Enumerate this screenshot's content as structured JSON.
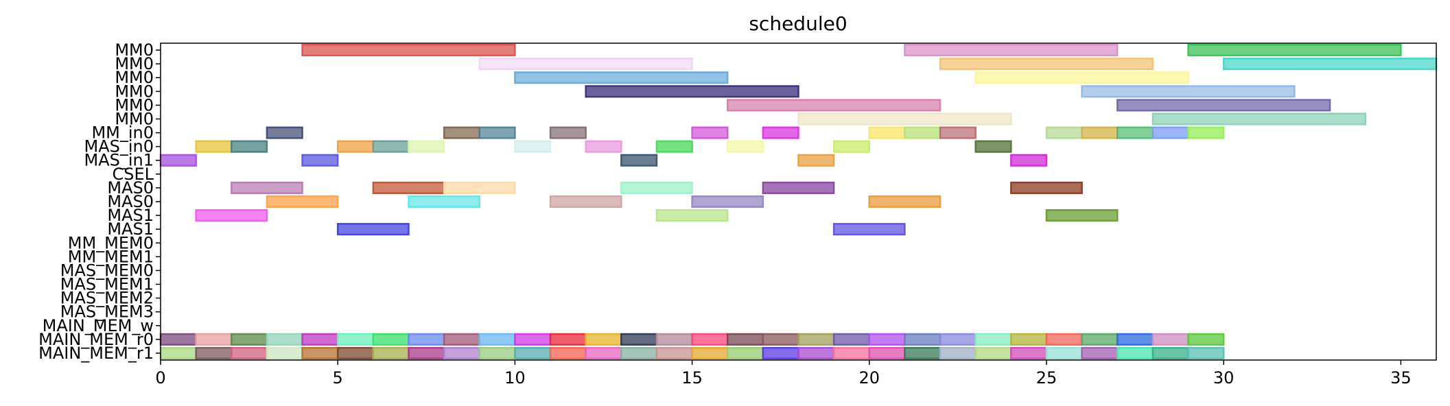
{
  "chart_data": {
    "type": "gantt",
    "title": "schedule0",
    "xlim": [
      0,
      36
    ],
    "xticks": [
      0,
      5,
      10,
      15,
      20,
      25,
      30,
      35
    ],
    "grid": false,
    "rows": [
      "MM0",
      "MM0",
      "MM0",
      "MM0",
      "MM0",
      "MM0",
      "MM_in0",
      "MAS_in0",
      "MAS_in1",
      "CSEL",
      "MAS0",
      "MAS0",
      "MAS1",
      "MAS1",
      "MM_MEM0",
      "MM_MEM1",
      "MAS_MEM0",
      "MAS_MEM1",
      "MAS_MEM2",
      "MAS_MEM3",
      "MAIN_MEM_w",
      "MAIN_MEM_r0",
      "MAIN_MEM_r1"
    ],
    "bars": [
      {
        "row": 0,
        "start": 4,
        "end": 10,
        "color": "#d9534f",
        "alpha": 0.75
      },
      {
        "row": 0,
        "start": 21,
        "end": 27,
        "color": "#d98cc7",
        "alpha": 0.7
      },
      {
        "row": 0,
        "start": 29,
        "end": 35,
        "color": "#3cc05a",
        "alpha": 0.75
      },
      {
        "row": 1,
        "start": 9,
        "end": 15,
        "color": "#e8c6ee",
        "alpha": 0.45
      },
      {
        "row": 1,
        "start": 22,
        "end": 28,
        "color": "#f4bf6e",
        "alpha": 0.7
      },
      {
        "row": 1,
        "start": 30,
        "end": 36,
        "color": "#40d4c8",
        "alpha": 0.7
      },
      {
        "row": 2,
        "start": 10,
        "end": 16,
        "color": "#64a8d8",
        "alpha": 0.7
      },
      {
        "row": 2,
        "start": 23,
        "end": 29,
        "color": "#fcf59a",
        "alpha": 0.75
      },
      {
        "row": 3,
        "start": 12,
        "end": 18,
        "color": "#3a2f7a",
        "alpha": 0.75
      },
      {
        "row": 3,
        "start": 26,
        "end": 32,
        "color": "#8ab2e0",
        "alpha": 0.65
      },
      {
        "row": 4,
        "start": 16,
        "end": 22,
        "color": "#d67aa8",
        "alpha": 0.7
      },
      {
        "row": 4,
        "start": 27,
        "end": 33,
        "color": "#6d5fa8",
        "alpha": 0.7
      },
      {
        "row": 5,
        "start": 18,
        "end": 24,
        "color": "#efe4c6",
        "alpha": 0.7
      },
      {
        "row": 5,
        "start": 28,
        "end": 34,
        "color": "#86ceb4",
        "alpha": 0.7
      },
      {
        "row": 6,
        "start": 3,
        "end": 4,
        "color": "#3b4670",
        "alpha": 0.7
      },
      {
        "row": 6,
        "start": 8,
        "end": 9,
        "color": "#7a6248",
        "alpha": 0.7
      },
      {
        "row": 6,
        "start": 9,
        "end": 10,
        "color": "#4a7f8e",
        "alpha": 0.7
      },
      {
        "row": 6,
        "start": 11,
        "end": 12,
        "color": "#7f6a6e",
        "alpha": 0.7
      },
      {
        "row": 6,
        "start": 15,
        "end": 16,
        "color": "#d24fd8",
        "alpha": 0.7
      },
      {
        "row": 6,
        "start": 17,
        "end": 18,
        "color": "#d936e0",
        "alpha": 0.75
      },
      {
        "row": 6,
        "start": 20,
        "end": 21,
        "color": "#f8e66a",
        "alpha": 0.75
      },
      {
        "row": 6,
        "start": 21,
        "end": 22,
        "color": "#b8e27a",
        "alpha": 0.75
      },
      {
        "row": 6,
        "start": 22,
        "end": 23,
        "color": "#b86a72",
        "alpha": 0.7
      },
      {
        "row": 6,
        "start": 25,
        "end": 26,
        "color": "#b2d890",
        "alpha": 0.7
      },
      {
        "row": 6,
        "start": 26,
        "end": 27,
        "color": "#d2b44a",
        "alpha": 0.75
      },
      {
        "row": 6,
        "start": 27,
        "end": 28,
        "color": "#4eba6e",
        "alpha": 0.7
      },
      {
        "row": 6,
        "start": 28,
        "end": 29,
        "color": "#7c9cf4",
        "alpha": 0.75
      },
      {
        "row": 6,
        "start": 29,
        "end": 30,
        "color": "#94ee5a",
        "alpha": 0.75
      },
      {
        "row": 7,
        "start": 1,
        "end": 2,
        "color": "#e6c43a",
        "alpha": 0.75
      },
      {
        "row": 7,
        "start": 2,
        "end": 3,
        "color": "#4a8080",
        "alpha": 0.75
      },
      {
        "row": 7,
        "start": 5,
        "end": 6,
        "color": "#f0a040",
        "alpha": 0.75
      },
      {
        "row": 7,
        "start": 6,
        "end": 7,
        "color": "#6aa09a",
        "alpha": 0.75
      },
      {
        "row": 7,
        "start": 7,
        "end": 8,
        "color": "#dff4b0",
        "alpha": 0.75
      },
      {
        "row": 7,
        "start": 10,
        "end": 11,
        "color": "#d4ecec",
        "alpha": 0.75
      },
      {
        "row": 7,
        "start": 12,
        "end": 13,
        "color": "#ea9ae0",
        "alpha": 0.75
      },
      {
        "row": 7,
        "start": 14,
        "end": 15,
        "color": "#4ad85a",
        "alpha": 0.75
      },
      {
        "row": 7,
        "start": 16,
        "end": 17,
        "color": "#f4f8a8",
        "alpha": 0.75
      },
      {
        "row": 7,
        "start": 19,
        "end": 20,
        "color": "#cceb6a",
        "alpha": 0.75
      },
      {
        "row": 7,
        "start": 23,
        "end": 24,
        "color": "#56703a",
        "alpha": 0.75
      },
      {
        "row": 8,
        "start": 0,
        "end": 1,
        "color": "#a650e0",
        "alpha": 0.75
      },
      {
        "row": 8,
        "start": 4,
        "end": 5,
        "color": "#5a58e0",
        "alpha": 0.75
      },
      {
        "row": 8,
        "start": 13,
        "end": 14,
        "color": "#3a5470",
        "alpha": 0.75
      },
      {
        "row": 8,
        "start": 18,
        "end": 19,
        "color": "#e8a040",
        "alpha": 0.75
      },
      {
        "row": 8,
        "start": 24,
        "end": 25,
        "color": "#d02ad6",
        "alpha": 0.75
      },
      {
        "row": 10,
        "start": 2,
        "end": 4,
        "color": "#b676ae",
        "alpha": 0.7
      },
      {
        "row": 10,
        "start": 6,
        "end": 8,
        "color": "#c04e2e",
        "alpha": 0.7
      },
      {
        "row": 10,
        "start": 8,
        "end": 10,
        "color": "#fedaa8",
        "alpha": 0.75
      },
      {
        "row": 10,
        "start": 13,
        "end": 15,
        "color": "#9cf2c8",
        "alpha": 0.75
      },
      {
        "row": 10,
        "start": 17,
        "end": 19,
        "color": "#8a44a0",
        "alpha": 0.75
      },
      {
        "row": 10,
        "start": 24,
        "end": 26,
        "color": "#8e3a22",
        "alpha": 0.75
      },
      {
        "row": 11,
        "start": 3,
        "end": 5,
        "color": "#fea24a",
        "alpha": 0.75
      },
      {
        "row": 11,
        "start": 7,
        "end": 9,
        "color": "#5ce6e6",
        "alpha": 0.7
      },
      {
        "row": 11,
        "start": 11,
        "end": 13,
        "color": "#d0a4a4",
        "alpha": 0.75
      },
      {
        "row": 11,
        "start": 15,
        "end": 17,
        "color": "#9488c4",
        "alpha": 0.75
      },
      {
        "row": 11,
        "start": 20,
        "end": 22,
        "color": "#ec9a3a",
        "alpha": 0.75
      },
      {
        "row": 12,
        "start": 1,
        "end": 3,
        "color": "#f05af0",
        "alpha": 0.75
      },
      {
        "row": 12,
        "start": 14,
        "end": 16,
        "color": "#bae48a",
        "alpha": 0.75
      },
      {
        "row": 12,
        "start": 25,
        "end": 27,
        "color": "#6a9e34",
        "alpha": 0.75
      },
      {
        "row": 13,
        "start": 5,
        "end": 7,
        "color": "#3a3ae0",
        "alpha": 0.7
      },
      {
        "row": 13,
        "start": 19,
        "end": 21,
        "color": "#5a4ae0",
        "alpha": 0.7
      },
      {
        "row": 21,
        "start": 0,
        "end": 1,
        "color": "#7e4a7e",
        "alpha": 0.75
      },
      {
        "row": 21,
        "start": 1,
        "end": 2,
        "color": "#e8a0a0",
        "alpha": 0.75
      },
      {
        "row": 21,
        "start": 2,
        "end": 3,
        "color": "#5e8a4a",
        "alpha": 0.75
      },
      {
        "row": 21,
        "start": 3,
        "end": 4,
        "color": "#90d6b8",
        "alpha": 0.75
      },
      {
        "row": 21,
        "start": 4,
        "end": 5,
        "color": "#c038c0",
        "alpha": 0.75
      },
      {
        "row": 21,
        "start": 5,
        "end": 6,
        "color": "#6af0b8",
        "alpha": 0.75
      },
      {
        "row": 21,
        "start": 6,
        "end": 7,
        "color": "#3ae06a",
        "alpha": 0.75
      },
      {
        "row": 21,
        "start": 7,
        "end": 8,
        "color": "#6a8af0",
        "alpha": 0.75
      },
      {
        "row": 21,
        "start": 8,
        "end": 9,
        "color": "#a05a78",
        "alpha": 0.75
      },
      {
        "row": 21,
        "start": 9,
        "end": 10,
        "color": "#6ab8f4",
        "alpha": 0.75
      },
      {
        "row": 21,
        "start": 10,
        "end": 11,
        "color": "#d638e6",
        "alpha": 0.75
      },
      {
        "row": 21,
        "start": 11,
        "end": 12,
        "color": "#e82a3a",
        "alpha": 0.75
      },
      {
        "row": 21,
        "start": 12,
        "end": 13,
        "color": "#e6b42a",
        "alpha": 0.75
      },
      {
        "row": 21,
        "start": 13,
        "end": 14,
        "color": "#2e3a54",
        "alpha": 0.75
      },
      {
        "row": 21,
        "start": 14,
        "end": 15,
        "color": "#b48a9a",
        "alpha": 0.75
      },
      {
        "row": 21,
        "start": 15,
        "end": 16,
        "color": "#f8467a",
        "alpha": 0.75
      },
      {
        "row": 21,
        "start": 16,
        "end": 17,
        "color": "#7a4a54",
        "alpha": 0.75
      },
      {
        "row": 21,
        "start": 17,
        "end": 18,
        "color": "#8a5a5e",
        "alpha": 0.75
      },
      {
        "row": 21,
        "start": 18,
        "end": 19,
        "color": "#a4a05a",
        "alpha": 0.75
      },
      {
        "row": 21,
        "start": 19,
        "end": 20,
        "color": "#6e5aa8",
        "alpha": 0.75
      },
      {
        "row": 21,
        "start": 20,
        "end": 21,
        "color": "#b050f0",
        "alpha": 0.75
      },
      {
        "row": 21,
        "start": 21,
        "end": 22,
        "color": "#6a7ec0",
        "alpha": 0.75
      },
      {
        "row": 21,
        "start": 22,
        "end": 23,
        "color": "#8a8ae0",
        "alpha": 0.75
      },
      {
        "row": 21,
        "start": 23,
        "end": 24,
        "color": "#86ecc0",
        "alpha": 0.75
      },
      {
        "row": 21,
        "start": 24,
        "end": 25,
        "color": "#b6b43a",
        "alpha": 0.75
      },
      {
        "row": 21,
        "start": 25,
        "end": 26,
        "color": "#f0665a",
        "alpha": 0.75
      },
      {
        "row": 21,
        "start": 26,
        "end": 27,
        "color": "#5aa86a",
        "alpha": 0.75
      },
      {
        "row": 21,
        "start": 27,
        "end": 28,
        "color": "#2a6ae0",
        "alpha": 0.75
      },
      {
        "row": 21,
        "start": 28,
        "end": 29,
        "color": "#d08ec0",
        "alpha": 0.75
      },
      {
        "row": 21,
        "start": 29,
        "end": 30,
        "color": "#5ac83a",
        "alpha": 0.75
      },
      {
        "row": 22,
        "start": 0,
        "end": 1,
        "color": "#a8d880",
        "alpha": 0.75
      },
      {
        "row": 22,
        "start": 1,
        "end": 2,
        "color": "#7a5a5e",
        "alpha": 0.75
      },
      {
        "row": 22,
        "start": 2,
        "end": 3,
        "color": "#d06080",
        "alpha": 0.75
      },
      {
        "row": 22,
        "start": 3,
        "end": 4,
        "color": "#cce8c0",
        "alpha": 0.75
      },
      {
        "row": 22,
        "start": 4,
        "end": 5,
        "color": "#b87030",
        "alpha": 0.75
      },
      {
        "row": 22,
        "start": 5,
        "end": 6,
        "color": "#7a4a30",
        "alpha": 0.75
      },
      {
        "row": 22,
        "start": 6,
        "end": 7,
        "color": "#aab050",
        "alpha": 0.75
      },
      {
        "row": 22,
        "start": 7,
        "end": 8,
        "color": "#a83a88",
        "alpha": 0.75
      },
      {
        "row": 22,
        "start": 8,
        "end": 9,
        "color": "#b080d0",
        "alpha": 0.75
      },
      {
        "row": 22,
        "start": 9,
        "end": 10,
        "color": "#98cc80",
        "alpha": 0.75
      },
      {
        "row": 22,
        "start": 10,
        "end": 11,
        "color": "#5aaeb0",
        "alpha": 0.75
      },
      {
        "row": 22,
        "start": 11,
        "end": 12,
        "color": "#f86450",
        "alpha": 0.75
      },
      {
        "row": 22,
        "start": 12,
        "end": 13,
        "color": "#e664c0",
        "alpha": 0.75
      },
      {
        "row": 22,
        "start": 13,
        "end": 14,
        "color": "#88b0a0",
        "alpha": 0.75
      },
      {
        "row": 22,
        "start": 14,
        "end": 15,
        "color": "#c89490",
        "alpha": 0.75
      },
      {
        "row": 22,
        "start": 15,
        "end": 16,
        "color": "#e6a830",
        "alpha": 0.75
      },
      {
        "row": 22,
        "start": 16,
        "end": 17,
        "color": "#98cc70",
        "alpha": 0.75
      },
      {
        "row": 22,
        "start": 17,
        "end": 18,
        "color": "#5a3ae6",
        "alpha": 0.75
      },
      {
        "row": 22,
        "start": 18,
        "end": 19,
        "color": "#a84ad0",
        "alpha": 0.75
      },
      {
        "row": 22,
        "start": 19,
        "end": 20,
        "color": "#f870a0",
        "alpha": 0.75
      },
      {
        "row": 22,
        "start": 20,
        "end": 21,
        "color": "#e050b0",
        "alpha": 0.75
      },
      {
        "row": 22,
        "start": 21,
        "end": 22,
        "color": "#3a7a58",
        "alpha": 0.75
      },
      {
        "row": 22,
        "start": 22,
        "end": 23,
        "color": "#a0b0c8",
        "alpha": 0.75
      },
      {
        "row": 22,
        "start": 23,
        "end": 24,
        "color": "#b0da80",
        "alpha": 0.75
      },
      {
        "row": 22,
        "start": 24,
        "end": 25,
        "color": "#d04ab8",
        "alpha": 0.75
      },
      {
        "row": 22,
        "start": 25,
        "end": 26,
        "color": "#98e0d8",
        "alpha": 0.75
      },
      {
        "row": 22,
        "start": 26,
        "end": 27,
        "color": "#a060b0",
        "alpha": 0.75
      },
      {
        "row": 22,
        "start": 27,
        "end": 28,
        "color": "#4ae6b0",
        "alpha": 0.75
      },
      {
        "row": 22,
        "start": 28,
        "end": 29,
        "color": "#38b08a",
        "alpha": 0.75
      },
      {
        "row": 22,
        "start": 29,
        "end": 30,
        "color": "#5ac0b0",
        "alpha": 0.75
      }
    ]
  }
}
